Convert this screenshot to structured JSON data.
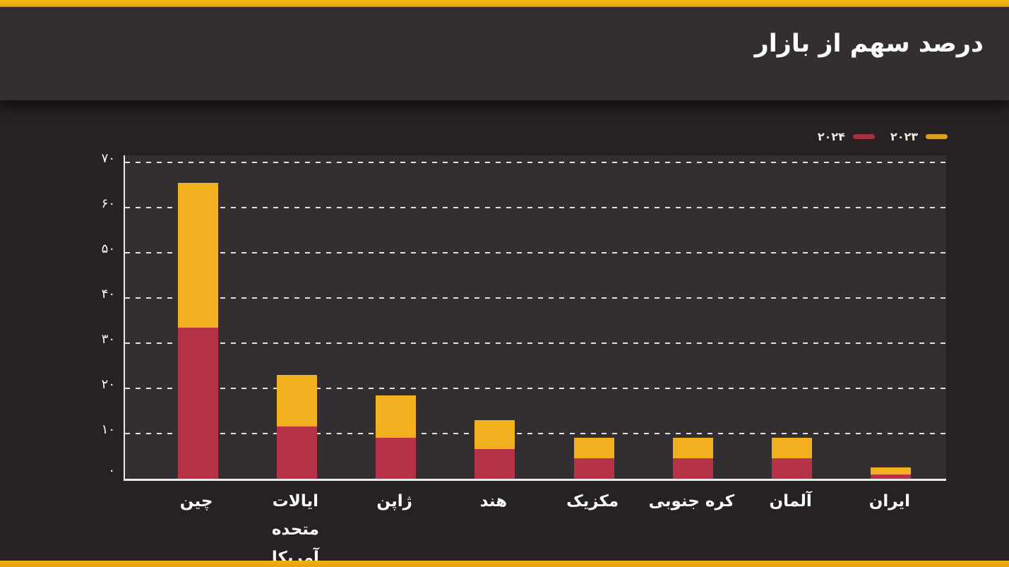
{
  "page": {
    "background": "#262122",
    "accent_strip_color": "#EFA90F"
  },
  "header": {
    "title": "درصد سهم از بازار",
    "background": "#332E2F"
  },
  "legend": {
    "position": "top-right",
    "items": [
      {
        "key": "2024",
        "label": "۲۰۲۴",
        "color": "#B73148"
      },
      {
        "key": "2023",
        "label": "۲۰۲۳",
        "color": "#F2B01E"
      }
    ]
  },
  "chart_data": {
    "type": "bar",
    "stacked": true,
    "title": "درصد سهم از بازار",
    "xlabel": "",
    "ylabel": "",
    "categories": [
      "چین",
      "ایالات متحده آمریکا",
      "ژاپن",
      "هند",
      "مکزیک",
      "کره جنوبی",
      "آلمان",
      "ایران"
    ],
    "category_keys": [
      "china",
      "usa",
      "japan",
      "india",
      "mexico",
      "south-korea",
      "germany",
      "iran"
    ],
    "categories_display": [
      [
        "چین"
      ],
      [
        "ایالات متحده",
        "آمریکا"
      ],
      [
        "ژاپن"
      ],
      [
        "هند"
      ],
      [
        "مکزیک"
      ],
      [
        "کره جنوبی"
      ],
      [
        "آلمان"
      ],
      [
        "ایران"
      ]
    ],
    "series": [
      {
        "key": "2024",
        "name": "۲۰۲۴",
        "color": "#B73148",
        "values": [
          33.5,
          11.5,
          9,
          6.5,
          4.5,
          4.5,
          4.5,
          1
        ]
      },
      {
        "key": "2023",
        "name": "۲۰۲۳",
        "color": "#F2B01E",
        "values": [
          32,
          11.5,
          9.5,
          6.5,
          4.5,
          4.5,
          4.5,
          1.5
        ]
      }
    ],
    "totals": [
      65.5,
      23,
      18.5,
      13,
      9,
      9,
      9,
      2.5
    ],
    "ylim": [
      0,
      70
    ],
    "yticks": [
      {
        "value": 0,
        "label": "۰"
      },
      {
        "value": 10,
        "label": "۱۰"
      },
      {
        "value": 20,
        "label": "۲۰"
      },
      {
        "value": 30,
        "label": "۳۰"
      },
      {
        "value": 40,
        "label": "۴۰"
      },
      {
        "value": 50,
        "label": "۵۰"
      },
      {
        "value": 60,
        "label": "۶۰"
      },
      {
        "value": 70,
        "label": "۷۰"
      }
    ],
    "grid": "horizontal-dashed",
    "legend_position": "top-right",
    "stack_order_bottom_to_top": [
      "۲۰۲۴",
      "۲۰۲۳"
    ]
  }
}
